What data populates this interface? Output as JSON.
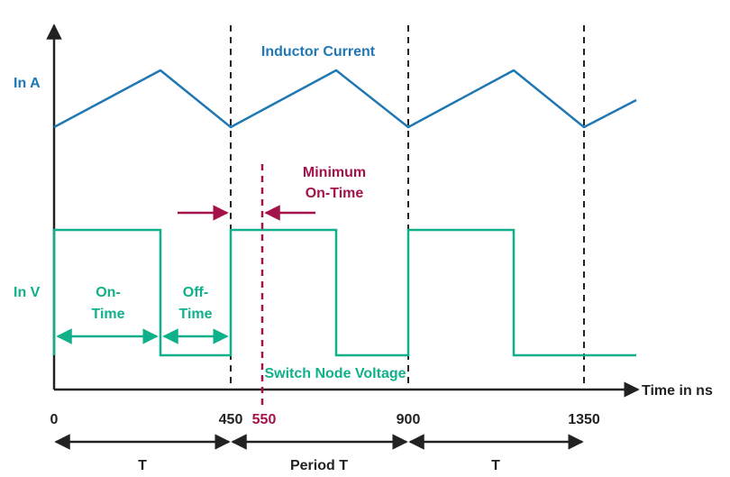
{
  "colors": {
    "current": "#1f77b4",
    "voltage": "#10b08a",
    "minimum": "#a4124a",
    "axis": "#222222"
  },
  "labels": {
    "inductor_current": "Inductor Current",
    "y_current": "In A",
    "y_voltage": "In V",
    "on_time_1": "On-",
    "on_time_2": "Time",
    "off_time_1": "Off-",
    "off_time_2": "Time",
    "min_on_1": "Minimum",
    "min_on_2": "On-Time",
    "switch_node_voltage": "Switch Node Voltage",
    "x_axis": "Time in ns",
    "period_left": "T",
    "period_middle": "Period T",
    "period_right": "T"
  },
  "ticks": {
    "t0": "0",
    "t450": "450",
    "t550": "550",
    "t900": "900",
    "t1350": "1350"
  }
}
